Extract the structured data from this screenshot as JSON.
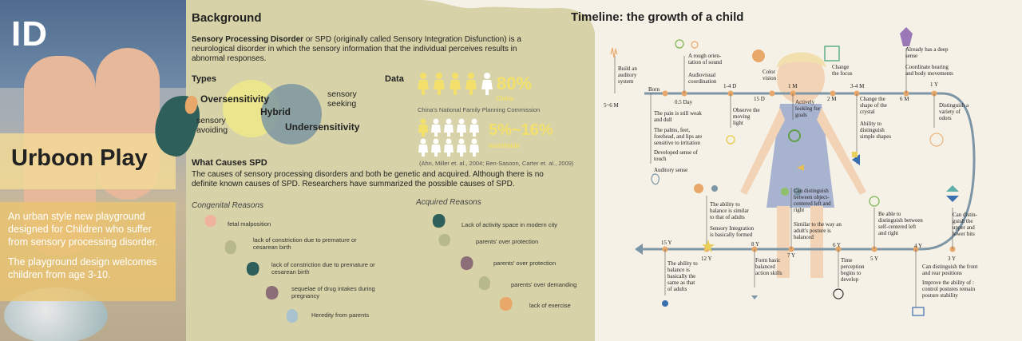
{
  "logo": "ID",
  "brand": {
    "title": "Urboon Play",
    "desc1": "An urban style new playground designed for Children who suffer from sensory processing disorder.",
    "desc2": "The playground design welcomes children from age 3-10."
  },
  "background": {
    "title": "Background",
    "intro_bold": "Sensory Processing Disorder",
    "intro_rest": " or SPD (originally called Sensory Integration Disfunction) is a neurological disorder in which the sensory information that the individual perceives results in abnormal responses."
  },
  "types": {
    "title": "Types",
    "oversensitivity": "Oversensitivity",
    "hybrid": "Hybrid",
    "undersensitivity": "Undersensitivity",
    "sensory_seeking": "sensory seeking",
    "sensory_avoiding": "sensory avoiding"
  },
  "data_section": {
    "title": "Data",
    "pct1": "80%",
    "region1": "China",
    "source1": "China's National Family Planning Commission",
    "pct2": "5%~16%",
    "region2": "worldwide",
    "source2": "(Ahn, Miller et. al., 2004; Ben-Sasoon, Carter et. al., 2009)"
  },
  "causes": {
    "title": "What Causes SPD",
    "text": "The causes of sensory processing disorders and both be genetic and acquired. Although there is no definite known causes of SPD. Researchers have summarized the possible causes of SPD.",
    "congenital_title": "Congenital Reasons",
    "congenital": [
      "fetal malposition",
      "lack of constriction due to premature or cesarean birth",
      "lack of constriction due to premature or cesarean birth",
      "sequelae of drug intakes during pregnancy",
      "Heredity from parents"
    ],
    "acquired_title": "Acquired Reasons",
    "acquired": [
      "Lack of activity space in modern city",
      "parents' over protection",
      "parents' over protection",
      "parents' over demanding",
      "lack of exercise"
    ]
  },
  "timeline": {
    "title": "Timeline: the growth of a child",
    "labels": {
      "m56": "5~6 M",
      "born": "Born",
      "d05": "0.5 Day",
      "d14": "1-4 D",
      "d15": "15 D",
      "m1": "1 M",
      "m2": "2 M",
      "m34": "3-4 M",
      "m6": "6 M",
      "y1": "1 Y",
      "y15": "15 Y",
      "y12": "12 Y",
      "y8": "8 Y",
      "y7": "7 Y",
      "y6": "6 Y",
      "y5": "5 Y",
      "y4": "4 Y",
      "y3": "3 Y"
    },
    "notes": {
      "auditory": "Build an auditory system",
      "orient": "A rough orien-tation of sound",
      "audiovisual": "Audiovisual coordination",
      "color": "Color vision",
      "focus": "Change the focus",
      "deep": "Already has a deep sense",
      "hearing": "Coordinate hearing and body movements",
      "pain": "The pain is still weak and dull",
      "palms": "The palms, feet, forehead, and lips are sensitive to irritation",
      "touch": "Developed sense of touch",
      "auditory_sense": "Auditory sense",
      "observe": "Observe the moving light",
      "goals": "Actively looking for goals",
      "crystal": "Change the shape of the crystal",
      "shapes": "Ability to distinguish simple shapes",
      "odors": "Distinguish a variety of odors",
      "balance_adults": "The ability to balance is similar to that of adults",
      "integration": "Sensory Integration is basically formed",
      "object": "Can distinguish between object-centered left and right",
      "posture": "Similar to the way an adult's posture is balanced",
      "self": "Be able to distinguish between self-centered left and right",
      "lower": "Can distin-guish the upper and lower bits",
      "balance15": "The ability to balance is basically the same as that of adults",
      "basic": "Form basic balanced action skills",
      "time": "Time perception begins to develop",
      "front": "Can distinguish the front and rear positions",
      "improve": "Improve the ability of : control postures remain posture stability"
    }
  },
  "colors": {
    "olive": "#d8d2a8",
    "yellow": "#f2e06a",
    "teal": "#2e5f5a",
    "track": "#7d96a6",
    "orange": "#e8a86a"
  }
}
